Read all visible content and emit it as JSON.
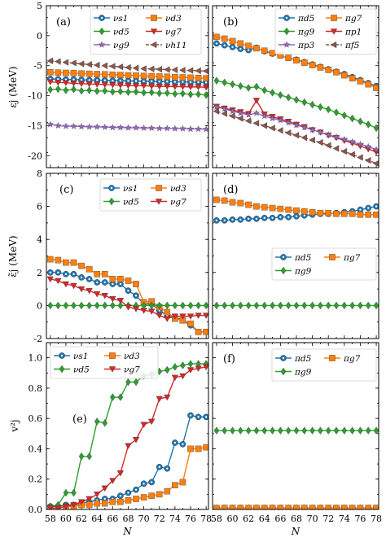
{
  "colors": {
    "blue": "#1f77b4",
    "orange": "#ff7f0e",
    "green": "#2ca02c",
    "red": "#d62728",
    "purple": "#9467bd",
    "brown": "#8c564b"
  },
  "chart_data": [
    {
      "id": "a",
      "tag": "(a)",
      "type": "line",
      "ylabel": "εj (MeV)",
      "ylim": [
        -22,
        5
      ],
      "yticks": [
        5,
        0,
        -5,
        -10,
        -15,
        -20
      ],
      "xlim": [
        57.5,
        78.3
      ],
      "legend": "top-right, 2 columns",
      "x": [
        58,
        59,
        60,
        61,
        62,
        63,
        64,
        65,
        66,
        67,
        68,
        69,
        70,
        71,
        72,
        73,
        74,
        75,
        76,
        77,
        78
      ],
      "series": [
        {
          "name": "νs1",
          "color": "blue",
          "marker": "circle-dot",
          "dash": false,
          "values": [
            -7.2,
            -7.25,
            -7.3,
            -7.3,
            -7.35,
            -7.4,
            -7.4,
            -7.45,
            -7.5,
            -7.5,
            -7.55,
            -7.55,
            -7.6,
            -7.6,
            -7.65,
            -7.65,
            -7.7,
            -7.7,
            -7.75,
            -7.75,
            -7.8
          ]
        },
        {
          "name": "νd3",
          "color": "orange",
          "marker": "square",
          "dash": false,
          "values": [
            -6.1,
            -6.15,
            -6.2,
            -6.25,
            -6.3,
            -6.35,
            -6.4,
            -6.45,
            -6.5,
            -6.55,
            -6.6,
            -6.65,
            -6.7,
            -6.75,
            -6.8,
            -6.85,
            -6.9,
            -6.95,
            -7.0,
            -7.05,
            -7.1
          ]
        },
        {
          "name": "νd5",
          "color": "green",
          "marker": "diamond",
          "dash": false,
          "values": [
            -9.0,
            -8.9,
            -9.1,
            -8.95,
            -9.2,
            -9.1,
            -9.25,
            -9.2,
            -9.35,
            -9.3,
            -9.4,
            -9.35,
            -9.5,
            -9.45,
            -9.6,
            -9.55,
            -9.7,
            -9.65,
            -9.8,
            -9.75,
            -9.9
          ]
        },
        {
          "name": "νg7",
          "color": "red",
          "marker": "triangle-down",
          "dash": false,
          "values": [
            -7.7,
            -7.8,
            -7.85,
            -7.95,
            -8.0,
            -8.05,
            -8.1,
            -8.15,
            -8.2,
            -8.25,
            -8.3,
            -8.35,
            -8.35,
            -8.4,
            -8.45,
            -8.45,
            -8.5,
            -8.5,
            -8.55,
            -8.55,
            -8.6
          ]
        },
        {
          "name": "νg9",
          "color": "purple",
          "marker": "star",
          "dash": false,
          "values": [
            -14.8,
            -15.0,
            -15.1,
            -15.1,
            -15.15,
            -15.2,
            -15.2,
            -15.25,
            -15.3,
            -15.3,
            -15.35,
            -15.35,
            -15.4,
            -15.4,
            -15.45,
            -15.45,
            -15.5,
            -15.5,
            -15.55,
            -15.55,
            -15.6
          ]
        },
        {
          "name": "νh11",
          "color": "brown",
          "marker": "triangle-left",
          "dash": true,
          "values": [
            -4.2,
            -4.3,
            -4.45,
            -4.55,
            -4.7,
            -4.8,
            -4.9,
            -5.0,
            -5.1,
            -5.2,
            -5.3,
            -5.4,
            -5.5,
            -5.55,
            -5.6,
            -5.65,
            -5.7,
            -5.75,
            -5.8,
            -5.85,
            -5.9
          ]
        }
      ]
    },
    {
      "id": "b",
      "tag": "(b)",
      "type": "line",
      "ylim": [
        -22,
        5
      ],
      "yticks": [
        5,
        0,
        -5,
        -10,
        -15,
        -20
      ],
      "xlim": [
        57.5,
        78.3
      ],
      "legend": "top-right, 2 columns",
      "x": [
        58,
        59,
        60,
        61,
        62,
        63,
        64,
        65,
        66,
        67,
        68,
        69,
        70,
        71,
        72,
        73,
        74,
        75,
        76,
        77,
        78
      ],
      "series": [
        {
          "name": "πd5",
          "color": "blue",
          "marker": "circle-dot",
          "dash": false,
          "values": [
            -1.3,
            -1.6,
            -1.9,
            -2.2,
            -2.4,
            -2.0,
            -2.6,
            -3.0,
            -3.3,
            -3.7,
            -4.0,
            -4.4,
            -4.8,
            -5.2,
            -5.6,
            -6.0,
            -6.4,
            -6.9,
            -7.4,
            -7.9,
            -8.4
          ]
        },
        {
          "name": "πg7",
          "color": "orange",
          "marker": "square",
          "dash": false,
          "values": [
            -0.2,
            -0.5,
            -0.9,
            -1.3,
            -1.7,
            -2.1,
            -2.5,
            -2.9,
            -3.3,
            -3.7,
            -4.1,
            -4.5,
            -4.9,
            -5.3,
            -5.7,
            -6.1,
            -6.6,
            -7.1,
            -7.6,
            -8.1,
            -8.7
          ]
        },
        {
          "name": "πg9",
          "color": "green",
          "marker": "diamond",
          "dash": false,
          "values": [
            -7.5,
            -7.8,
            -8.1,
            -8.4,
            -8.7,
            -8.5,
            -9.1,
            -9.5,
            -9.9,
            -10.3,
            -10.7,
            -11.1,
            -11.5,
            -11.9,
            -12.3,
            -12.8,
            -13.3,
            -13.8,
            -14.3,
            -14.8,
            -15.4
          ]
        },
        {
          "name": "πp1",
          "color": "red",
          "marker": "triangle-down",
          "dash": false,
          "values": [
            -11.8,
            -12.1,
            -12.4,
            -12.7,
            -13.0,
            -10.8,
            -13.1,
            -13.5,
            -13.9,
            -14.3,
            -14.8,
            -15.2,
            -15.7,
            -16.1,
            -16.6,
            -17.0,
            -17.5,
            -17.9,
            -18.4,
            -18.9,
            -19.4
          ]
        },
        {
          "name": "πp3",
          "color": "purple",
          "marker": "star",
          "dash": false,
          "values": [
            -11.9,
            -12.2,
            -12.6,
            -12.9,
            -13.2,
            -12.9,
            -13.4,
            -13.8,
            -14.1,
            -14.5,
            -14.9,
            -15.3,
            -15.7,
            -16.1,
            -16.5,
            -16.9,
            -17.3,
            -17.7,
            -18.1,
            -18.5,
            -19.0
          ]
        },
        {
          "name": "πf5",
          "color": "brown",
          "marker": "triangle-left",
          "dash": true,
          "values": [
            -12.6,
            -13.0,
            -13.4,
            -13.8,
            -14.2,
            -14.6,
            -15.0,
            -15.4,
            -15.8,
            -16.2,
            -16.6,
            -17.0,
            -17.4,
            -17.8,
            -18.3,
            -18.8,
            -19.3,
            -19.8,
            -20.3,
            -20.8,
            -21.3
          ]
        }
      ]
    },
    {
      "id": "c",
      "tag": "(c)",
      "type": "line",
      "ylabel": "ε̃j (MeV)",
      "ylim": [
        -2,
        8
      ],
      "yticks": [
        8,
        6,
        4,
        2,
        0,
        -2
      ],
      "xlim": [
        57.5,
        78.3
      ],
      "legend": "top-right, 2 columns",
      "x": [
        58,
        59,
        60,
        61,
        62,
        63,
        64,
        65,
        66,
        67,
        68,
        69,
        70,
        71,
        72,
        73,
        74,
        75,
        76,
        77,
        78
      ],
      "series": [
        {
          "name": "νs1",
          "color": "blue",
          "marker": "circle-dot",
          "dash": false,
          "values": [
            2.0,
            2.0,
            1.9,
            1.9,
            1.7,
            1.6,
            1.4,
            1.4,
            1.3,
            1.3,
            0.9,
            0.6,
            0.1,
            0.1,
            -0.3,
            -0.6,
            -0.7,
            -0.9,
            -1.2,
            -1.6,
            -1.6
          ]
        },
        {
          "name": "νd3",
          "color": "orange",
          "marker": "square",
          "dash": false,
          "values": [
            2.8,
            2.75,
            2.6,
            2.6,
            2.4,
            2.2,
            1.9,
            1.9,
            1.6,
            1.6,
            1.5,
            1.3,
            0.2,
            0.25,
            -0.1,
            -0.4,
            -0.8,
            -0.9,
            -1.1,
            -1.6,
            -1.6
          ]
        },
        {
          "name": "νd5",
          "color": "green",
          "marker": "diamond",
          "dash": false,
          "values": [
            0,
            0,
            0,
            0,
            0,
            0,
            0,
            0,
            0,
            0,
            0,
            0,
            0,
            0,
            0,
            0,
            0,
            0,
            0,
            0,
            0
          ]
        },
        {
          "name": "νg7",
          "color": "red",
          "marker": "triangle-down",
          "dash": false,
          "values": [
            1.6,
            1.5,
            1.3,
            1.2,
            1.0,
            0.9,
            0.7,
            0.6,
            0.4,
            0.3,
            -0.1,
            -0.2,
            -0.3,
            -0.35,
            -0.6,
            -0.8,
            -0.65,
            -0.65,
            -0.65,
            -0.6,
            -0.6
          ]
        }
      ]
    },
    {
      "id": "d",
      "tag": "(d)",
      "type": "line",
      "ylim": [
        -2,
        8
      ],
      "yticks": [
        8,
        6,
        4,
        2,
        0,
        -2
      ],
      "xlim": [
        57.5,
        78.3
      ],
      "legend": "middle-right, 2 columns",
      "x": [
        58,
        59,
        60,
        61,
        62,
        63,
        64,
        65,
        66,
        67,
        68,
        69,
        70,
        71,
        72,
        73,
        74,
        75,
        76,
        77,
        78
      ],
      "series": [
        {
          "name": "πd5",
          "color": "blue",
          "marker": "circle-dot",
          "dash": false,
          "values": [
            5.15,
            5.15,
            5.2,
            5.2,
            5.25,
            5.25,
            5.3,
            5.3,
            5.35,
            5.35,
            5.4,
            5.45,
            5.5,
            5.55,
            5.55,
            5.6,
            5.65,
            5.7,
            5.8,
            5.9,
            6.0
          ]
        },
        {
          "name": "πg7",
          "color": "orange",
          "marker": "square",
          "dash": false,
          "values": [
            6.4,
            6.35,
            6.25,
            6.2,
            6.1,
            6.0,
            5.95,
            5.9,
            5.85,
            5.8,
            5.75,
            5.7,
            5.65,
            5.6,
            5.6,
            5.55,
            5.55,
            5.55,
            5.5,
            5.5,
            5.5
          ]
        },
        {
          "name": "πg9",
          "color": "green",
          "marker": "diamond",
          "dash": false,
          "values": [
            0,
            0,
            0,
            0,
            0,
            0,
            0,
            0,
            0,
            0,
            0,
            0,
            0,
            0,
            0,
            0,
            0,
            0,
            0,
            0,
            0
          ]
        }
      ]
    },
    {
      "id": "e",
      "tag": "(e)",
      "type": "line",
      "ylabel": "v²j",
      "xlabel": "N",
      "ylim": [
        0,
        1.1
      ],
      "yticks": [
        1.0,
        0.8,
        0.6,
        0.4,
        0.2,
        0.0
      ],
      "xlim": [
        57.5,
        78.3
      ],
      "xticks": [
        58,
        60,
        62,
        64,
        66,
        68,
        70,
        72,
        74,
        76,
        78
      ],
      "legend": "top-left, 2 columns",
      "x": [
        58,
        59,
        60,
        61,
        62,
        63,
        64,
        65,
        66,
        67,
        68,
        69,
        70,
        71,
        72,
        73,
        74,
        75,
        76,
        77,
        78
      ],
      "series": [
        {
          "name": "νs1",
          "color": "blue",
          "marker": "circle-dot",
          "dash": false,
          "values": [
            0.02,
            0.02,
            0.03,
            0.03,
            0.04,
            0.05,
            0.06,
            0.07,
            0.07,
            0.09,
            0.11,
            0.13,
            0.17,
            0.18,
            0.28,
            0.27,
            0.44,
            0.43,
            0.62,
            0.61,
            0.61
          ]
        },
        {
          "name": "νd3",
          "color": "orange",
          "marker": "square",
          "dash": false,
          "values": [
            0.01,
            0.01,
            0.02,
            0.02,
            0.03,
            0.03,
            0.04,
            0.04,
            0.05,
            0.05,
            0.06,
            0.07,
            0.08,
            0.09,
            0.1,
            0.12,
            0.16,
            0.18,
            0.4,
            0.4,
            0.41
          ]
        },
        {
          "name": "νd5",
          "color": "green",
          "marker": "diamond",
          "dash": false,
          "values": [
            0.02,
            0.03,
            0.11,
            0.11,
            0.35,
            0.35,
            0.58,
            0.57,
            0.74,
            0.74,
            0.84,
            0.84,
            0.88,
            0.89,
            0.91,
            0.92,
            0.94,
            0.95,
            0.96,
            0.96,
            0.96
          ]
        },
        {
          "name": "νg7",
          "color": "red",
          "marker": "triangle-down",
          "dash": false,
          "values": [
            0.01,
            0.01,
            0.02,
            0.03,
            0.05,
            0.07,
            0.1,
            0.14,
            0.19,
            0.24,
            0.42,
            0.46,
            0.56,
            0.58,
            0.73,
            0.74,
            0.87,
            0.88,
            0.92,
            0.93,
            0.94
          ]
        }
      ]
    },
    {
      "id": "f",
      "tag": "(f)",
      "type": "line",
      "xlabel": "N",
      "ylim": [
        0,
        1.1
      ],
      "yticks": [
        1.0,
        0.8,
        0.6,
        0.4,
        0.2,
        0.0
      ],
      "xlim": [
        57.5,
        78.3
      ],
      "xticks": [
        58,
        60,
        62,
        64,
        66,
        68,
        70,
        72,
        74,
        76,
        78
      ],
      "legend": "top-right, 2 columns",
      "x": [
        58,
        59,
        60,
        61,
        62,
        63,
        64,
        65,
        66,
        67,
        68,
        69,
        70,
        71,
        72,
        73,
        74,
        75,
        76,
        77,
        78
      ],
      "series": [
        {
          "name": "πd5",
          "color": "blue",
          "marker": "circle-dot",
          "dash": false,
          "values": [
            0.01,
            0.01,
            0.01,
            0.01,
            0.01,
            0.01,
            0.01,
            0.01,
            0.01,
            0.01,
            0.01,
            0.01,
            0.01,
            0.01,
            0.01,
            0.01,
            0.01,
            0.01,
            0.01,
            0.01,
            0.01
          ]
        },
        {
          "name": "πg7",
          "color": "orange",
          "marker": "square",
          "dash": false,
          "values": [
            0.01,
            0.01,
            0.01,
            0.01,
            0.01,
            0.01,
            0.01,
            0.01,
            0.01,
            0.01,
            0.01,
            0.01,
            0.01,
            0.01,
            0.01,
            0.01,
            0.01,
            0.01,
            0.01,
            0.01,
            0.01
          ]
        },
        {
          "name": "πg9",
          "color": "green",
          "marker": "diamond",
          "dash": false,
          "values": [
            0.52,
            0.52,
            0.52,
            0.52,
            0.52,
            0.52,
            0.52,
            0.52,
            0.52,
            0.52,
            0.52,
            0.52,
            0.52,
            0.52,
            0.52,
            0.52,
            0.52,
            0.52,
            0.52,
            0.52,
            0.52
          ]
        }
      ]
    }
  ]
}
